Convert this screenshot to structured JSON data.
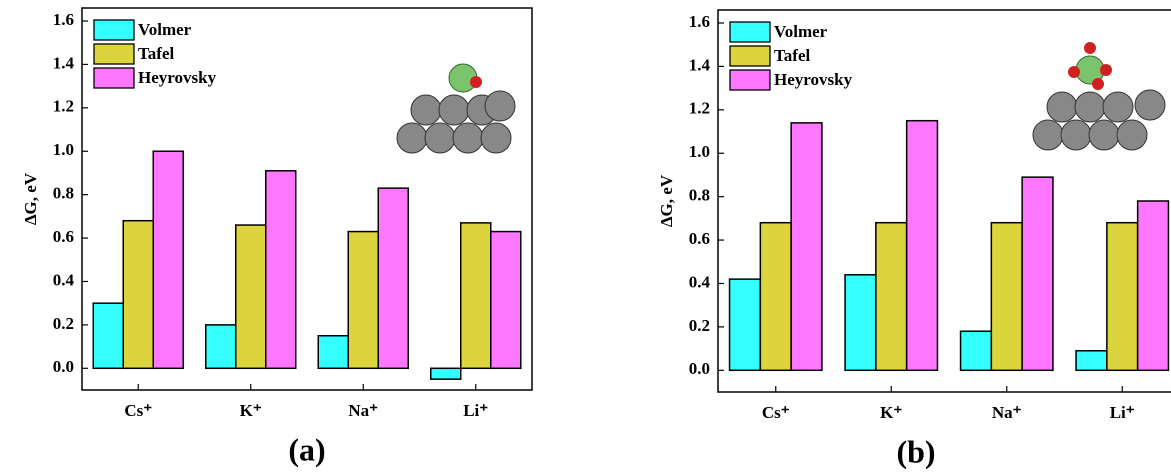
{
  "chart_data": [
    {
      "type": "bar",
      "panel_label": "(a)",
      "ylabel": "ΔG, eV",
      "categories": [
        "Cs⁺",
        "K⁺",
        "Na⁺",
        "Li⁺"
      ],
      "series": [
        {
          "name": "Volmer",
          "color": "#33ffff",
          "values": [
            0.3,
            0.2,
            0.15,
            -0.05
          ]
        },
        {
          "name": "Tafel",
          "color": "#dcd43c",
          "values": [
            0.68,
            0.66,
            0.63,
            0.67
          ]
        },
        {
          "name": "Heyrovsky",
          "color": "#ff77ff",
          "values": [
            1.0,
            0.91,
            0.83,
            0.63
          ]
        }
      ],
      "ylim": [
        -0.1,
        1.66
      ],
      "yticks": [
        {
          "value": 0,
          "label": "0.0"
        },
        0.2,
        0.4,
        0.6,
        0.8,
        {
          "value": 1,
          "label": "1.0"
        },
        1.2,
        1.4,
        1.6
      ],
      "legend": "upper left",
      "grid": false
    },
    {
      "type": "bar",
      "panel_label": "(b)",
      "ylabel": "ΔG, eV",
      "categories": [
        "Cs⁺",
        "K⁺",
        "Na⁺",
        "Li⁺"
      ],
      "series": [
        {
          "name": "Volmer",
          "color": "#33ffff",
          "values": [
            0.42,
            0.44,
            0.18,
            0.09
          ]
        },
        {
          "name": "Tafel",
          "color": "#dcd43c",
          "values": [
            0.68,
            0.68,
            0.68,
            0.68
          ]
        },
        {
          "name": "Heyrovsky",
          "color": "#ff77ff",
          "values": [
            1.14,
            1.15,
            0.89,
            0.78
          ]
        }
      ],
      "ylim": [
        -0.1,
        1.66
      ],
      "yticks": [
        {
          "value": 0,
          "label": "0.0"
        },
        0.2,
        0.4,
        0.6,
        0.8,
        {
          "value": 1,
          "label": "1.0"
        },
        1.2,
        1.4,
        1.6
      ],
      "legend": "upper left",
      "grid": false
    }
  ]
}
